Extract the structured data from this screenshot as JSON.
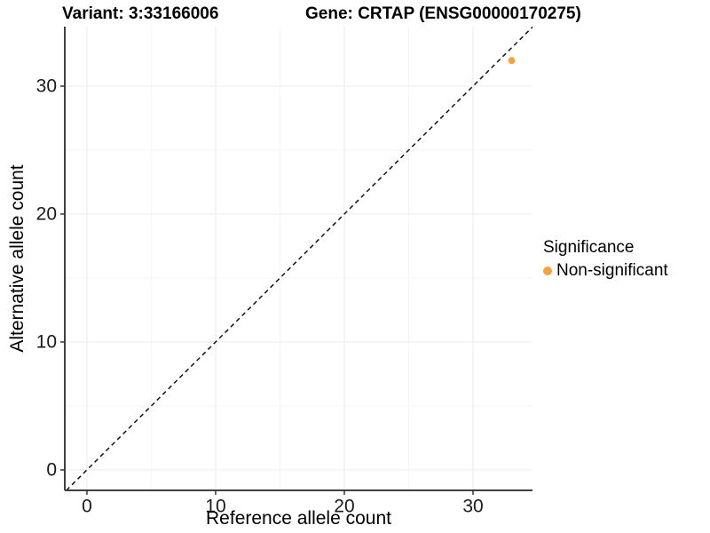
{
  "chart_data": {
    "type": "scatter",
    "title_left": "Variant: 3:33166006",
    "title_right": "Gene: CRTAP (ENSG00000170275)",
    "xlabel": "Reference allele count",
    "ylabel": "Alternative allele count",
    "xlim": [
      -1.72,
      34.62
    ],
    "ylim": [
      -1.6,
      34.65
    ],
    "x_major_ticks": [
      0,
      10,
      20,
      30
    ],
    "y_major_ticks": [
      0,
      10,
      20,
      30
    ],
    "x_minor_ticks": [
      5,
      15,
      25,
      35
    ],
    "y_minor_ticks": [
      5,
      15,
      25,
      35
    ],
    "grid": "major and minor, light gray on white panel",
    "identity_line": {
      "slope": 1,
      "intercept": 0,
      "style": "dashed",
      "color": "#111111"
    },
    "series": [
      {
        "name": "Non-significant",
        "color": "#F9A23C",
        "values": [
          {
            "x": 33,
            "y": 32
          }
        ]
      }
    ],
    "legend": {
      "title": "Significance",
      "position": "right",
      "items": [
        {
          "label": "Non-significant",
          "color": "#F9A23C"
        }
      ]
    },
    "colors": {
      "axis_line": "#404040",
      "tick_mark": "#333333",
      "grid_major": "#ededed",
      "grid_minor": "#f6f6f6",
      "point": "#F9A23C",
      "background": "#ffffff"
    }
  }
}
